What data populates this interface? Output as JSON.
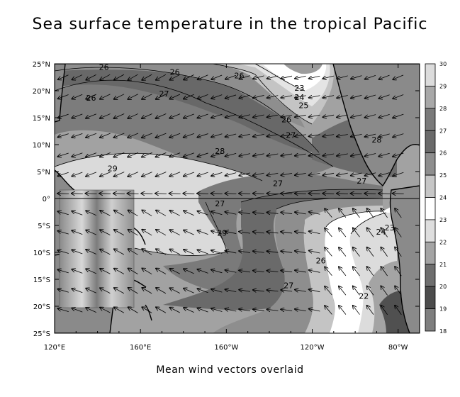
{
  "title": "Sea surface temperature in the tropical Pacific",
  "subtitle": "Mean wind vectors overlaid",
  "chart_data": {
    "type": "heatmap",
    "title": "Sea surface temperature in the tropical Pacific",
    "subtitle": "Mean wind vectors overlaid",
    "x_ticks": [
      "120°E",
      "160°E",
      "160°W",
      "120°W",
      "80°W"
    ],
    "x_tick_lon": [
      120,
      160,
      200,
      240,
      280
    ],
    "y_ticks": [
      "25°N",
      "20°N",
      "15°N",
      "10°N",
      "5°N",
      "0°",
      "5°S",
      "10°S",
      "15°S",
      "20°S",
      "25°S"
    ],
    "y_tick_lat": [
      25,
      20,
      15,
      10,
      5,
      0,
      -5,
      -10,
      -15,
      -20,
      -25
    ],
    "xlim": [
      120,
      290
    ],
    "ylim": [
      -25,
      25
    ],
    "colorbar": {
      "labels": [
        "30",
        "29",
        "28",
        "27",
        "26",
        "25",
        "24",
        "23",
        "22",
        "21",
        "20",
        "19",
        "18"
      ],
      "min": 18,
      "max": 30,
      "colors": [
        "#dcdcdc",
        "#a8a8a8",
        "#7a7a7a",
        "#6a6a6a",
        "#8e8e8e",
        "#c6c6c6",
        "#ffffff",
        "#dedede",
        "#a4a4a4",
        "#6e6e6e",
        "#4c4c4c",
        "#7e7e7e",
        "#b6b6b6"
      ]
    },
    "contour_labels": [
      {
        "text": "26",
        "lon": 143,
        "lat": 24.4
      },
      {
        "text": "26",
        "lon": 176,
        "lat": 23.5
      },
      {
        "text": "26",
        "lon": 206,
        "lat": 22.8
      },
      {
        "text": "26",
        "lon": 137,
        "lat": 18.7
      },
      {
        "text": "27",
        "lon": 171,
        "lat": 19.5
      },
      {
        "text": "23",
        "lon": 234,
        "lat": 20.5
      },
      {
        "text": "24",
        "lon": 234,
        "lat": 18.8
      },
      {
        "text": "25",
        "lon": 236,
        "lat": 17.3
      },
      {
        "text": "26",
        "lon": 228,
        "lat": 14.7
      },
      {
        "text": "27",
        "lon": 230,
        "lat": 11.8
      },
      {
        "text": "28",
        "lon": 197,
        "lat": 8.8
      },
      {
        "text": "29",
        "lon": 147,
        "lat": 5.6
      },
      {
        "text": "27",
        "lon": 224,
        "lat": 2.8
      },
      {
        "text": "27",
        "lon": 263,
        "lat": 3.3
      },
      {
        "text": "28",
        "lon": 270,
        "lat": 10.9
      },
      {
        "text": "27",
        "lon": 197,
        "lat": -0.9
      },
      {
        "text": "29",
        "lon": 198,
        "lat": -6.4
      },
      {
        "text": "26",
        "lon": 244,
        "lat": -11.5
      },
      {
        "text": "27",
        "lon": 229,
        "lat": -16.1
      },
      {
        "text": "22",
        "lon": 264,
        "lat": -18.1
      },
      {
        "text": "24",
        "lon": 272,
        "lat": -6.2
      },
      {
        "text": "23",
        "lon": 276,
        "lat": -5.4
      }
    ]
  }
}
